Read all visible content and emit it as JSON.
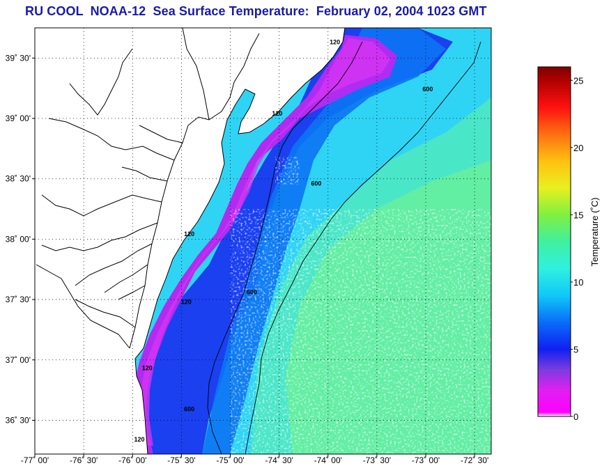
{
  "title": "RU COOL  NOAA-12  Sea Surface Temperature:  February 02, 2004 1023 GMT",
  "colors": {
    "title": "#1a1aa6",
    "land": "#ffffff",
    "coastline": "#000000",
    "frame": "#000000"
  },
  "map": {
    "lon_range": [
      -77.0,
      -72.33
    ],
    "lat_range": [
      36.22,
      39.75
    ],
    "lon_ticks": [
      {
        "value": -77.0,
        "label": "-77˚ 00'"
      },
      {
        "value": -76.5,
        "label": "-76˚ 30'"
      },
      {
        "value": -76.0,
        "label": "-76˚ 00'"
      },
      {
        "value": -75.5,
        "label": "-75˚ 30'"
      },
      {
        "value": -75.0,
        "label": "-75˚ 00'"
      },
      {
        "value": -74.5,
        "label": "-74˚ 30'"
      },
      {
        "value": -74.0,
        "label": "-74˚ 00'"
      },
      {
        "value": -73.5,
        "label": "-73˚ 30'"
      },
      {
        "value": -73.0,
        "label": "-73˚ 00'"
      },
      {
        "value": -72.5,
        "label": "-72˚ 30'"
      }
    ],
    "lat_ticks": [
      {
        "value": 39.5,
        "label": "39˚ 30'"
      },
      {
        "value": 39.0,
        "label": "39˚ 00'"
      },
      {
        "value": 38.5,
        "label": "38˚ 30'"
      },
      {
        "value": 38.0,
        "label": "38˚ 00'"
      },
      {
        "value": 37.5,
        "label": "37˚ 30'"
      },
      {
        "value": 37.0,
        "label": "37˚ 00'"
      },
      {
        "value": 36.5,
        "label": "36˚ 30'"
      }
    ],
    "isobaths": [
      {
        "depth": "120",
        "labels": [
          {
            "lon": -73.93,
            "lat": 39.62
          },
          {
            "lon": -74.52,
            "lat": 39.03
          },
          {
            "lon": -75.42,
            "lat": 38.03
          },
          {
            "lon": -75.45,
            "lat": 37.47
          },
          {
            "lon": -75.85,
            "lat": 36.92
          },
          {
            "lon": -75.93,
            "lat": 36.33
          }
        ]
      },
      {
        "depth": "600",
        "labels": [
          {
            "lon": -72.98,
            "lat": 39.23
          },
          {
            "lon": -74.12,
            "lat": 38.45
          },
          {
            "lon": -74.78,
            "lat": 37.55
          },
          {
            "lon": -75.42,
            "lat": 36.58
          }
        ]
      }
    ]
  },
  "colorbar": {
    "label": "Temperature (˚C)",
    "min": 0,
    "max": 26,
    "ticks": [
      {
        "value": 0,
        "label": "0"
      },
      {
        "value": 5,
        "label": "5"
      },
      {
        "value": 10,
        "label": "10"
      },
      {
        "value": 15,
        "label": "15"
      },
      {
        "value": 20,
        "label": "20"
      },
      {
        "value": 25,
        "label": "25"
      }
    ],
    "stops": [
      {
        "value": 0,
        "color": "#ffffff"
      },
      {
        "value": 0.3,
        "color": "#ff00ff"
      },
      {
        "value": 2,
        "color": "#e020f0"
      },
      {
        "value": 3.5,
        "color": "#7a3ce0"
      },
      {
        "value": 5,
        "color": "#1020f0"
      },
      {
        "value": 7,
        "color": "#0a6cf8"
      },
      {
        "value": 9,
        "color": "#10c8f8"
      },
      {
        "value": 11,
        "color": "#30f0e0"
      },
      {
        "value": 13,
        "color": "#40f0a0"
      },
      {
        "value": 15,
        "color": "#80f040"
      },
      {
        "value": 17,
        "color": "#e8f020"
      },
      {
        "value": 19,
        "color": "#ffc010"
      },
      {
        "value": 21,
        "color": "#ff7010"
      },
      {
        "value": 23,
        "color": "#ff1010"
      },
      {
        "value": 25,
        "color": "#b00000"
      },
      {
        "value": 26,
        "color": "#800000"
      }
    ]
  }
}
